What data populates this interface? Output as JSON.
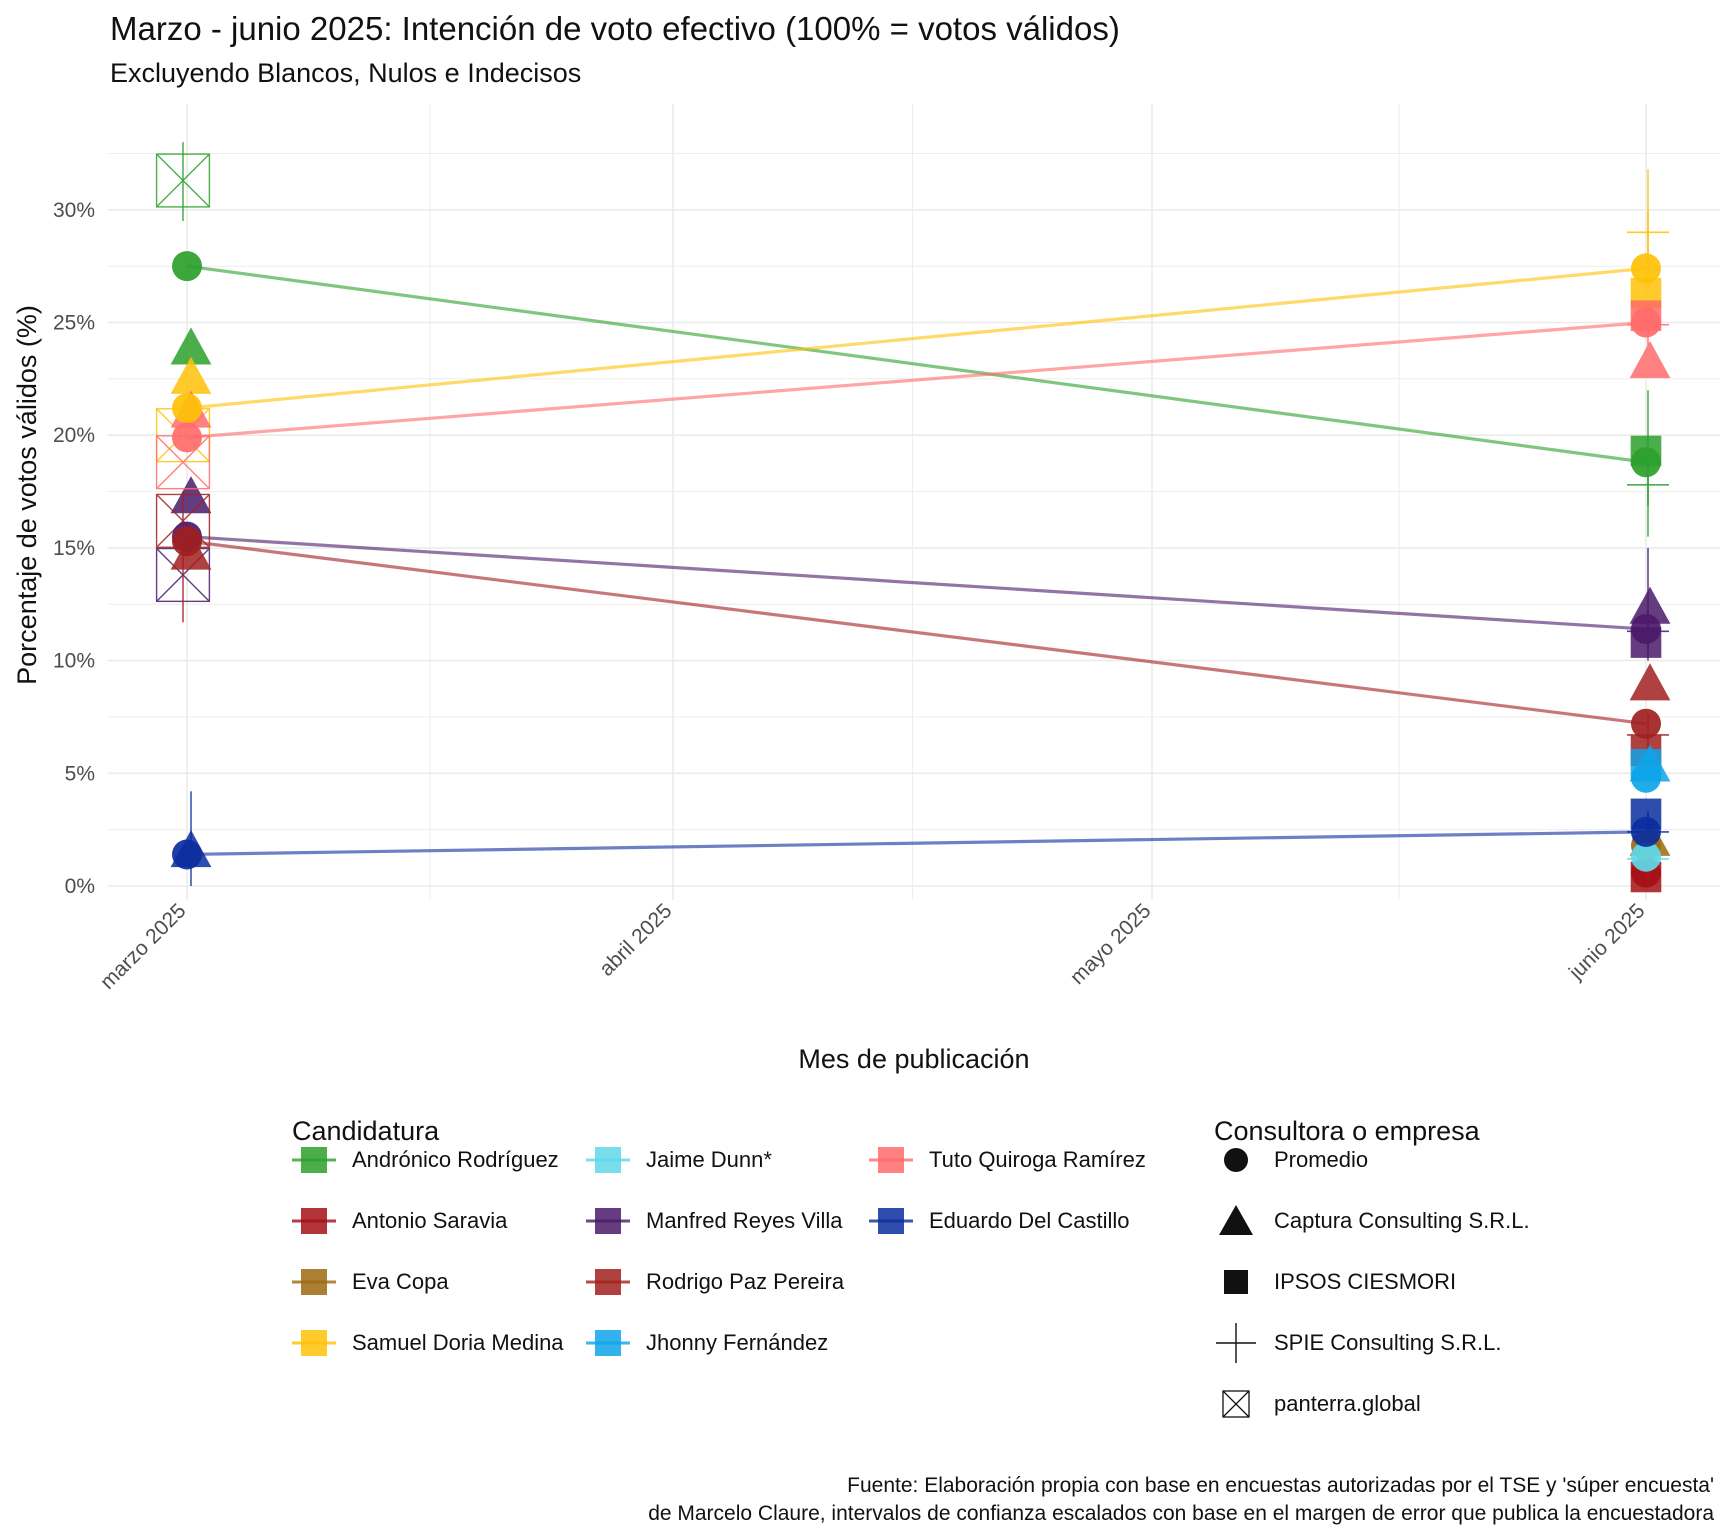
{
  "title": "Marzo - junio 2025: Intención de voto efectivo (100% = votos válidos)",
  "subtitle": "Excluyendo Blancos, Nulos e Indecisos",
  "caption": {
    "line1": "Fuente: Elaboración propia con base en encuestas autorizadas por el TSE y 'súper encuesta'",
    "line2": "de Marcelo Claure, intervalos de confianza escalados con base en el margen de error que publica la encuestadora"
  },
  "legend": {
    "candidates_title": "Candidatura",
    "pollsters_title": "Consultora o empresa",
    "pollsters": [
      {
        "name": "Promedio",
        "shape": "circle"
      },
      {
        "name": "Captura Consulting S.R.L.",
        "shape": "triangle"
      },
      {
        "name": "IPSOS CIESMORI",
        "shape": "square"
      },
      {
        "name": "SPIE Consulting S.R.L.",
        "shape": "plus"
      },
      {
        "name": "panterra.global",
        "shape": "boxcross"
      }
    ]
  },
  "chart_data": {
    "type": "line",
    "xlabel": "Mes de publicación",
    "ylabel": "Porcentaje de votos válidos (%)",
    "x": [
      "marzo 2025",
      "abril 2025",
      "mayo 2025",
      "junio 2025"
    ],
    "y_ticks": [
      "0%",
      "5%",
      "10%",
      "15%",
      "20%",
      "25%",
      "30%"
    ],
    "ylim": [
      0,
      32.5
    ],
    "grid": true,
    "legend_position": "bottom",
    "series": [
      {
        "name": "Andrónico Rodríguez",
        "color": "#2ca02c",
        "promedio": [
          27.5,
          18.8
        ],
        "polls": [
          {
            "month": "marzo 2025",
            "pollster": "Captura Consulting S.R.L.",
            "value": 23.8
          },
          {
            "month": "marzo 2025",
            "pollster": "panterra.global",
            "value": 31.3,
            "ci": [
              29.5,
              33.0
            ]
          },
          {
            "month": "junio 2025",
            "pollster": "IPSOS CIESMORI",
            "value": 19.3
          },
          {
            "month": "junio 2025",
            "pollster": "SPIE Consulting S.R.L.",
            "value": 17.8,
            "ci": [
              15.5,
              22.0
            ]
          }
        ]
      },
      {
        "name": "Antonio Saravia",
        "color": "#a50f15",
        "promedio": [
          null,
          0.6
        ],
        "polls": [
          {
            "month": "junio 2025",
            "pollster": "IPSOS CIESMORI",
            "value": 0.4
          }
        ]
      },
      {
        "name": "Eva Copa",
        "color": "#9c6a12",
        "promedio": [
          null,
          1.8
        ],
        "polls": [
          {
            "month": "junio 2025",
            "pollster": "Captura Consulting S.R.L.",
            "value": 2.0
          }
        ]
      },
      {
        "name": "Samuel Doria Medina",
        "color": "#ffc107",
        "promedio": [
          21.2,
          27.4
        ],
        "polls": [
          {
            "month": "marzo 2025",
            "pollster": "Captura Consulting S.R.L.",
            "value": 22.5
          },
          {
            "month": "marzo 2025",
            "pollster": "panterra.global",
            "value": 20.0
          },
          {
            "month": "junio 2025",
            "pollster": "IPSOS CIESMORI",
            "value": 26.3
          },
          {
            "month": "junio 2025",
            "pollster": "SPIE Consulting S.R.L.",
            "value": 29.0,
            "ci": [
              26.5,
              31.8
            ]
          }
        ]
      },
      {
        "name": "Jaime Dunn*",
        "color": "#5fd9e8",
        "promedio": [
          null,
          1.3
        ],
        "polls": [
          {
            "month": "junio 2025",
            "pollster": "SPIE Consulting S.R.L.",
            "value": 1.2
          }
        ]
      },
      {
        "name": "Manfred Reyes Villa",
        "color": "#4b1a6b",
        "promedio": [
          15.5,
          11.4
        ],
        "polls": [
          {
            "month": "marzo 2025",
            "pollster": "Captura Consulting S.R.L.",
            "value": 17.2
          },
          {
            "month": "marzo 2025",
            "pollster": "panterra.global",
            "value": 13.8
          },
          {
            "month": "junio 2025",
            "pollster": "Captura Consulting S.R.L.",
            "value": 12.3
          },
          {
            "month": "junio 2025",
            "pollster": "IPSOS CIESMORI",
            "value": 10.8
          },
          {
            "month": "junio 2025",
            "pollster": "SPIE Consulting S.R.L.",
            "value": 11.3,
            "ci": [
              10.0,
              15.0
            ]
          }
        ]
      },
      {
        "name": "Rodrigo Paz Pereira",
        "color": "#a1201f",
        "promedio": [
          15.3,
          7.2
        ],
        "polls": [
          {
            "month": "marzo 2025",
            "pollster": "Captura Consulting S.R.L.",
            "value": 14.7
          },
          {
            "month": "marzo 2025",
            "pollster": "panterra.global",
            "value": 16.2,
            "ci": [
              11.7,
              17.5
            ]
          },
          {
            "month": "junio 2025",
            "pollster": "Captura Consulting S.R.L.",
            "value": 8.9
          },
          {
            "month": "junio 2025",
            "pollster": "IPSOS CIESMORI",
            "value": 6.0
          },
          {
            "month": "junio 2025",
            "pollster": "SPIE Consulting S.R.L.",
            "value": 6.7
          }
        ]
      },
      {
        "name": "Jhonny Fernández",
        "color": "#0ea5e9",
        "promedio": [
          null,
          4.8
        ],
        "polls": [
          {
            "month": "junio 2025",
            "pollster": "Captura Consulting S.R.L.",
            "value": 5.3
          },
          {
            "month": "junio 2025",
            "pollster": "IPSOS CIESMORI",
            "value": 5.4
          }
        ]
      },
      {
        "name": "Tuto Quiroga Ramírez",
        "color": "#ff6b6b",
        "promedio": [
          19.9,
          25.0
        ],
        "polls": [
          {
            "month": "marzo 2025",
            "pollster": "Captura Consulting S.R.L.",
            "value": 21.0
          },
          {
            "month": "marzo 2025",
            "pollster": "panterra.global",
            "value": 18.8
          },
          {
            "month": "junio 2025",
            "pollster": "Captura Consulting S.R.L.",
            "value": 23.2
          },
          {
            "month": "junio 2025",
            "pollster": "IPSOS CIESMORI",
            "value": 25.3
          },
          {
            "month": "junio 2025",
            "pollster": "SPIE Consulting S.R.L.",
            "value": 24.9
          }
        ]
      },
      {
        "name": "Eduardo Del Castillo",
        "color": "#0b2e9e",
        "promedio": [
          1.4,
          2.4
        ],
        "polls": [
          {
            "month": "marzo 2025",
            "pollster": "Captura Consulting S.R.L.",
            "value": 1.5,
            "ci": [
              0.0,
              4.2
            ]
          },
          {
            "month": "junio 2025",
            "pollster": "IPSOS CIESMORI",
            "value": 3.2
          },
          {
            "month": "junio 2025",
            "pollster": "SPIE Consulting S.R.L.",
            "value": 2.4,
            "ci": [
              1.0,
              3.2
            ]
          }
        ]
      }
    ]
  }
}
